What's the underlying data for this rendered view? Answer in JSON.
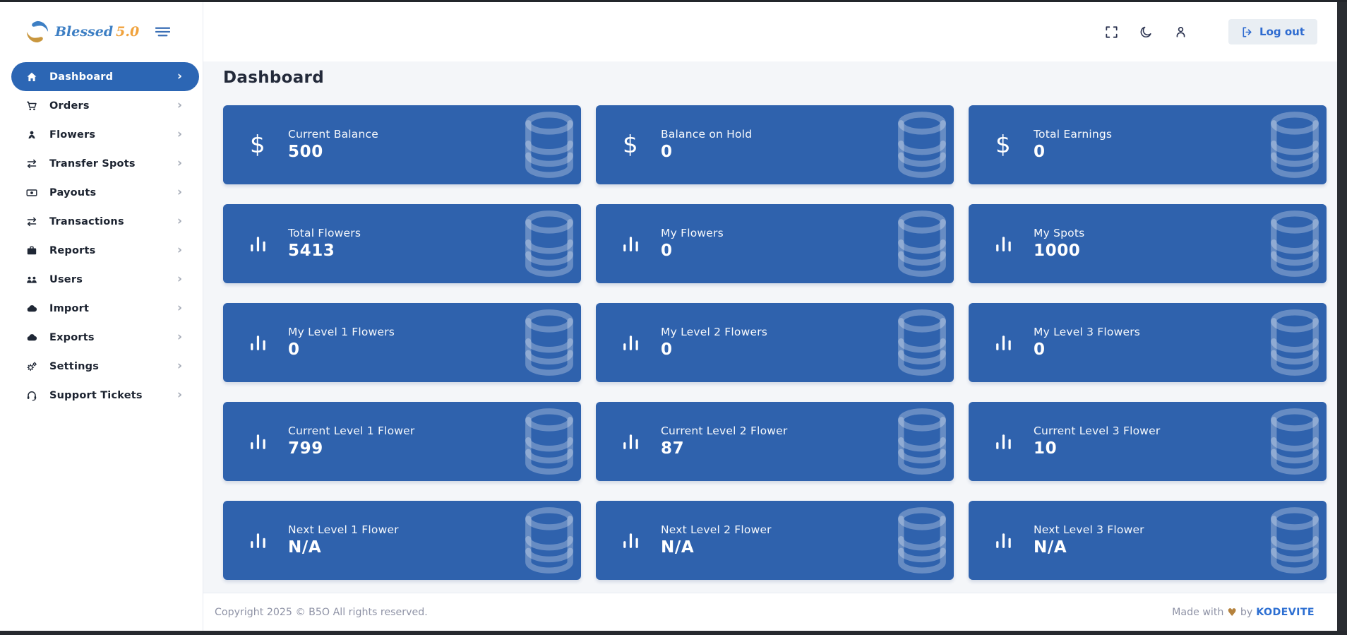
{
  "brand": {
    "name": "Blessed",
    "version": "5.0",
    "logo_icon": "hands-logo-icon"
  },
  "header": {
    "menu_toggle_icon": "hamburger-icon",
    "actions": [
      {
        "icon": "fullscreen-icon"
      },
      {
        "icon": "moon-icon"
      },
      {
        "icon": "user-icon"
      }
    ],
    "logout_label": "Log out",
    "logout_icon": "logout-icon"
  },
  "sidebar": {
    "chevron_icon": "chevron-right-icon",
    "items": [
      {
        "label": "Dashboard",
        "icon": "home-icon",
        "active": true
      },
      {
        "label": "Orders",
        "icon": "cart-icon",
        "active": false
      },
      {
        "label": "Flowers",
        "icon": "flower-icon",
        "active": false
      },
      {
        "label": "Transfer Spots",
        "icon": "transfer-icon",
        "active": false
      },
      {
        "label": "Payouts",
        "icon": "banknote-icon",
        "active": false
      },
      {
        "label": "Transactions",
        "icon": "transactions-icon",
        "active": false
      },
      {
        "label": "Reports",
        "icon": "briefcase-icon",
        "active": false
      },
      {
        "label": "Users",
        "icon": "users-icon",
        "active": false
      },
      {
        "label": "Import",
        "icon": "cloud-import-icon",
        "active": false
      },
      {
        "label": "Exports",
        "icon": "cloud-export-icon",
        "active": false
      },
      {
        "label": "Settings",
        "icon": "gear-icon",
        "active": false
      },
      {
        "label": "Support Tickets",
        "icon": "headset-icon",
        "active": false
      }
    ]
  },
  "main": {
    "page_title": "Dashboard",
    "card_bg_icon": "database-icon",
    "cards": [
      {
        "label": "Current Balance",
        "value": "500",
        "icon": "dollar-icon"
      },
      {
        "label": "Balance on Hold",
        "value": "0",
        "icon": "dollar-icon"
      },
      {
        "label": "Total Earnings",
        "value": "0",
        "icon": "dollar-icon"
      },
      {
        "label": "Total Flowers",
        "value": "5413",
        "icon": "bar-chart-icon"
      },
      {
        "label": "My Flowers",
        "value": "0",
        "icon": "bar-chart-icon"
      },
      {
        "label": "My Spots",
        "value": "1000",
        "icon": "bar-chart-icon"
      },
      {
        "label": "My Level 1 Flowers",
        "value": "0",
        "icon": "bar-chart-icon"
      },
      {
        "label": "My Level 2 Flowers",
        "value": "0",
        "icon": "bar-chart-icon"
      },
      {
        "label": "My Level 3 Flowers",
        "value": "0",
        "icon": "bar-chart-icon"
      },
      {
        "label": "Current Level 1 Flower",
        "value": "799",
        "icon": "bar-chart-icon"
      },
      {
        "label": "Current Level 2 Flower",
        "value": "87",
        "icon": "bar-chart-icon"
      },
      {
        "label": "Current Level 3 Flower",
        "value": "10",
        "icon": "bar-chart-icon"
      },
      {
        "label": "Next Level 1 Flower",
        "value": "N/A",
        "icon": "bar-chart-icon"
      },
      {
        "label": "Next Level 2 Flower",
        "value": "N/A",
        "icon": "bar-chart-icon"
      },
      {
        "label": "Next Level 3 Flower",
        "value": "N/A",
        "icon": "bar-chart-icon"
      }
    ]
  },
  "footer": {
    "copyright": "Copyright 2025 © B5O All rights reserved.",
    "made_with": "Made with",
    "heart_icon": "heart-icon",
    "by": "by",
    "credit": "KODEVITE"
  },
  "colors": {
    "card_blue": "#2f62ad",
    "active_item_blue": "#2c66b4",
    "logout_text_blue": "#2e6bd0",
    "credit_blue": "#2d6fd2",
    "heart_brown": "#b5823d",
    "footer_text_gray": "#8f93a6",
    "content_bg": "#f4f6f9",
    "brand_blue": "#3d7fc4",
    "brand_orange": "#f0a23c"
  }
}
